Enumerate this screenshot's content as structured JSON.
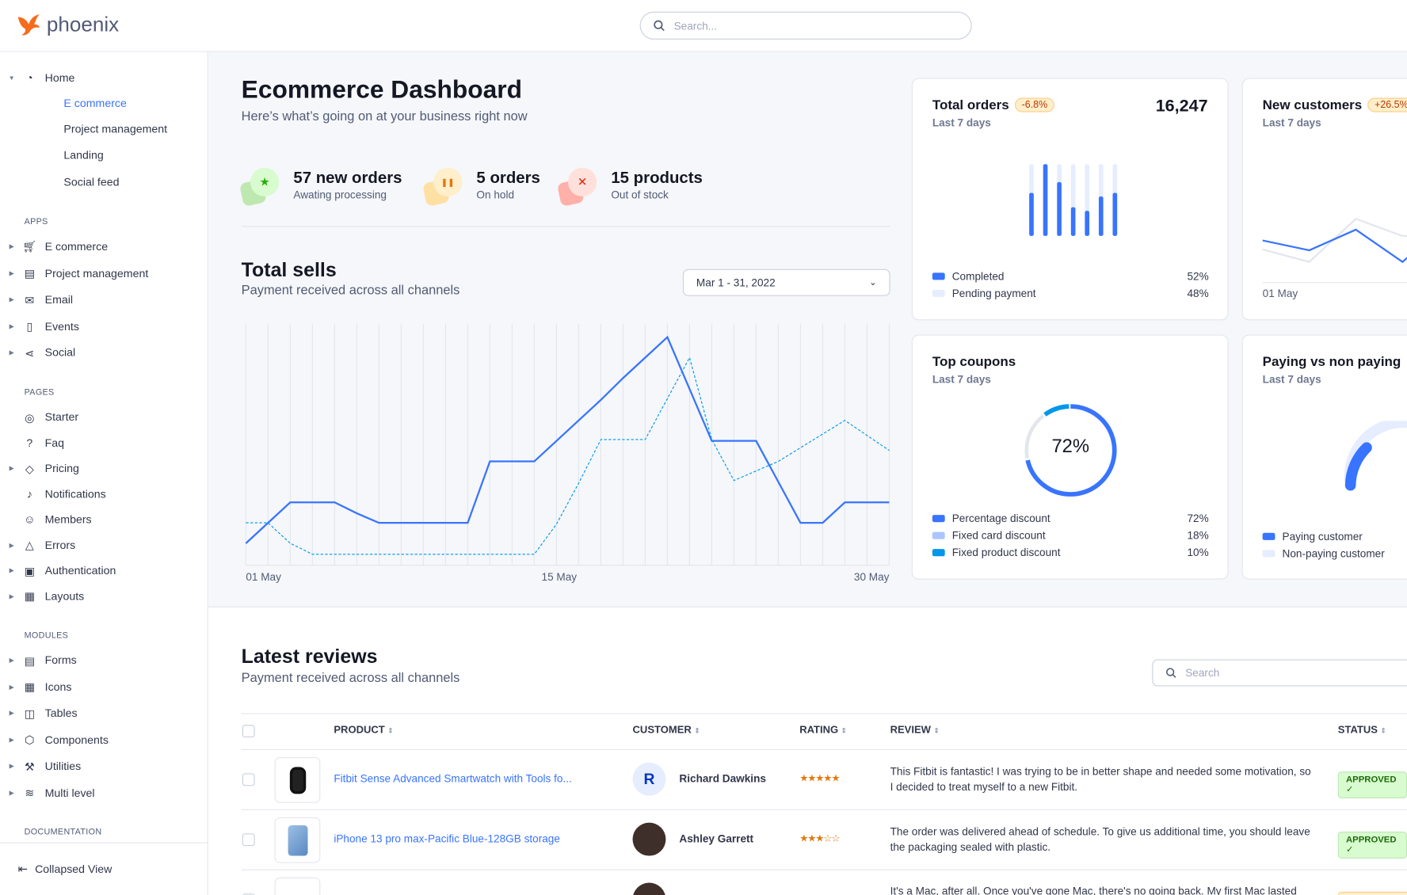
{
  "app": {
    "name": "phoenix"
  },
  "search": {
    "placeholder": "Search..."
  },
  "sidebar": {
    "home": {
      "label": "Home",
      "children": [
        "E commerce",
        "Project management",
        "Landing",
        "Social feed"
      ]
    },
    "sections": [
      {
        "title": "APPS",
        "items": [
          {
            "label": "E commerce",
            "icon": "cart-icon",
            "caret": true
          },
          {
            "label": "Project management",
            "icon": "clipboard-icon",
            "caret": true
          },
          {
            "label": "Email",
            "icon": "mail-icon",
            "caret": true
          },
          {
            "label": "Events",
            "icon": "bookmark-icon",
            "caret": true
          },
          {
            "label": "Social",
            "icon": "share-icon",
            "caret": true
          }
        ]
      },
      {
        "title": "PAGES",
        "items": [
          {
            "label": "Starter",
            "icon": "compass-icon",
            "caret": false
          },
          {
            "label": "Faq",
            "icon": "help-circle-icon",
            "caret": false
          },
          {
            "label": "Pricing",
            "icon": "tag-icon",
            "caret": true
          },
          {
            "label": "Notifications",
            "icon": "bell-icon",
            "caret": false
          },
          {
            "label": "Members",
            "icon": "users-icon",
            "caret": false
          },
          {
            "label": "Errors",
            "icon": "alert-triangle-icon",
            "caret": true
          },
          {
            "label": "Authentication",
            "icon": "lock-icon",
            "caret": true
          },
          {
            "label": "Layouts",
            "icon": "layout-icon",
            "caret": true
          }
        ]
      },
      {
        "title": "MODULES",
        "items": [
          {
            "label": "Forms",
            "icon": "file-text-icon",
            "caret": true
          },
          {
            "label": "Icons",
            "icon": "grid-icon",
            "caret": true
          },
          {
            "label": "Tables",
            "icon": "columns-icon",
            "caret": true
          },
          {
            "label": "Components",
            "icon": "package-icon",
            "caret": true
          },
          {
            "label": "Utilities",
            "icon": "tool-icon",
            "caret": true
          },
          {
            "label": "Multi level",
            "icon": "layers-icon",
            "caret": true
          }
        ]
      },
      {
        "title": "DOCUMENTATION",
        "items": []
      }
    ],
    "collapse": "Collapsed View"
  },
  "dashboard": {
    "title": "Ecommerce Dashboard",
    "subtitle": "Here’s what’s going on at your business right now"
  },
  "stats": [
    {
      "title": "57 new orders",
      "sub": "Awating processing",
      "icon": "star-icon",
      "color": "#25b003"
    },
    {
      "title": "5 orders",
      "sub": "On hold",
      "icon": "pause-icon",
      "color": "#e5780b"
    },
    {
      "title": "15 products",
      "sub": "Out of stock",
      "icon": "x-icon",
      "color": "#ec1f00"
    }
  ],
  "sells": {
    "title": "Total sells",
    "subtitle": "Payment received across all channels",
    "date_range": "Mar 1 - 31, 2022"
  },
  "chart_data": [
    {
      "type": "line",
      "title": "Total sells",
      "x": [
        1,
        2,
        3,
        4,
        5,
        6,
        7,
        8,
        9,
        10,
        11,
        12,
        13,
        14,
        15,
        16,
        17,
        18,
        19,
        20,
        21,
        22,
        23,
        24,
        25,
        26,
        27,
        28,
        29,
        30
      ],
      "x_tick_labels": [
        "01 May",
        "15 May",
        "30 May"
      ],
      "grid": "vertical",
      "series": [
        {
          "style": "solid",
          "color": "#3874ff",
          "values": [
            8,
            15.5,
            23,
            23,
            23,
            19,
            15.5,
            15.5,
            15.5,
            15.5,
            15.5,
            38,
            38,
            38,
            45.5,
            53,
            60.5,
            68.5,
            76,
            83.5,
            64.5,
            45.5,
            45.5,
            45.5,
            30.5,
            15.5,
            15.5,
            23,
            23,
            23
          ]
        },
        {
          "style": "dashed",
          "color": "#0097eb",
          "values": [
            15.5,
            15.5,
            8,
            4,
            4,
            4,
            4,
            4,
            4,
            4,
            4,
            4,
            4,
            4,
            15,
            30,
            46,
            46,
            46,
            61,
            76,
            46,
            31,
            34.5,
            38,
            43,
            48,
            53,
            47.5,
            42
          ]
        }
      ]
    },
    {
      "type": "bar",
      "title": "Total orders",
      "categories": [
        1,
        2,
        3,
        4,
        5,
        6,
        7
      ],
      "series": [
        {
          "name": "Completed",
          "values": [
            60,
            100,
            75,
            40,
            35,
            55,
            60
          ]
        },
        {
          "name": "Pending payment",
          "values": [
            100,
            100,
            100,
            100,
            100,
            100,
            100
          ]
        }
      ]
    },
    {
      "type": "pie",
      "title": "Top coupons",
      "series": [
        {
          "name": "Percentage discount",
          "value": 72
        },
        {
          "name": "Fixed card discount",
          "value": 18
        },
        {
          "name": "Fixed product discount",
          "value": 10
        }
      ]
    }
  ],
  "total_orders": {
    "title": "Total orders",
    "badge": "-6.8%",
    "sub": "Last 7 days",
    "value": "16,247",
    "legend": [
      {
        "label": "Completed",
        "value": "52%",
        "color": "#3874ff"
      },
      {
        "label": "Pending payment",
        "value": "48%",
        "color": "#e5edff"
      }
    ]
  },
  "new_customers": {
    "title": "New customers",
    "badge": "+26.5%",
    "sub": "Last 7 days",
    "x_label": "01 May"
  },
  "top_coupons": {
    "title": "Top coupons",
    "sub": "Last 7 days",
    "center": "72%",
    "legend": [
      {
        "label": "Percentage discount",
        "value": "72%",
        "color": "#3874ff"
      },
      {
        "label": "Fixed card discount",
        "value": "18%",
        "color": "#adc5ff"
      },
      {
        "label": "Fixed product discount",
        "value": "10%",
        "color": "#0097eb"
      }
    ]
  },
  "paying": {
    "title": "Paying vs non paying",
    "sub": "Last 7 days",
    "legend": [
      {
        "label": "Paying customer",
        "color": "#3874ff"
      },
      {
        "label": "Non-paying customer",
        "color": "#e5edff"
      }
    ]
  },
  "reviews": {
    "title": "Latest reviews",
    "subtitle": "Payment received across all channels",
    "search_placeholder": "Search",
    "columns": [
      "PRODUCT",
      "CUSTOMER",
      "RATING",
      "REVIEW",
      "STATUS"
    ],
    "rows": [
      {
        "product": "Fitbit Sense Advanced Smartwatch with Tools fo...",
        "customer": "Richard Dawkins",
        "initial": "R",
        "rating": "★★★★★",
        "review": "This Fitbit is fantastic! I was trying to be in better shape and needed some motivation, so I decided to treat myself to a new Fitbit.",
        "status": "APPROVED ✓"
      },
      {
        "product": "iPhone 13 pro max-Pacific Blue-128GB storage",
        "customer": "Ashley Garrett",
        "rating": "★★★☆☆",
        "review": "The order was delivered ahead of schedule. To give us additional time, you should leave the packaging sealed with plastic.",
        "status": "APPROVED ✓"
      },
      {
        "review": "It's a Mac, after all. Once you've gone Mac, there's no going back. My first Mac lasted"
      }
    ]
  }
}
